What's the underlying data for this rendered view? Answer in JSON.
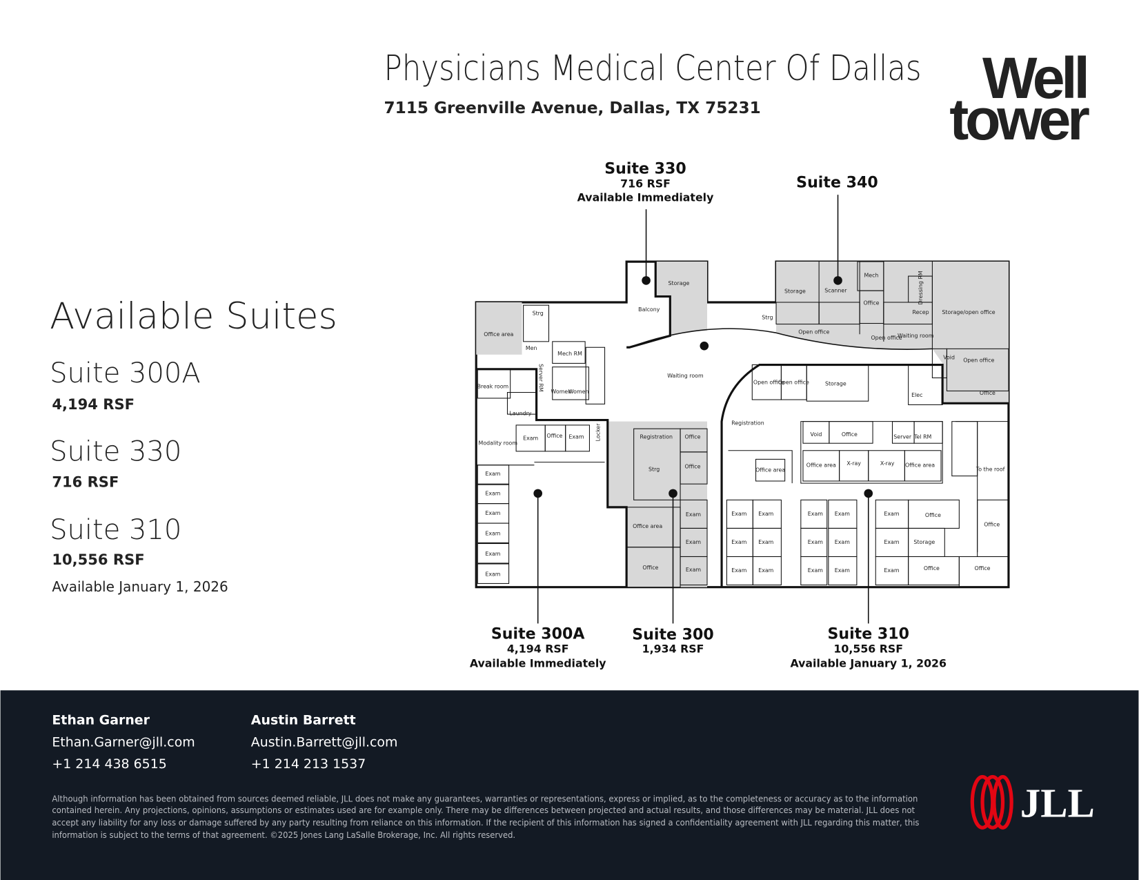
{
  "header": {
    "title": "Physicians Medical Center Of Dallas",
    "address": "7115 Greenville Avenue, Dallas, TX 75231",
    "brand_logo": [
      "Well",
      "tower"
    ]
  },
  "available": {
    "heading": "Available Suites",
    "suites": [
      {
        "name": "Suite 300A",
        "size": "4,194 RSF"
      },
      {
        "name": "Suite 330",
        "size": "716 RSF"
      },
      {
        "name": "Suite 310",
        "size": "10,556 RSF",
        "availability": "Available January 1, 2026"
      }
    ]
  },
  "floor_plan": {
    "callouts": [
      {
        "name": "Suite 330",
        "size": "716 RSF",
        "availability": "Available Immediately"
      },
      {
        "name": "Suite 340"
      },
      {
        "name": "Suite 300A",
        "size": "4,194 RSF",
        "availability": "Available Immediately"
      },
      {
        "name": "Suite 300",
        "size": "1,934 RSF"
      },
      {
        "name": "Suite 310",
        "size": "10,556 RSF",
        "availability": "Available January 1, 2026"
      }
    ],
    "rooms": [
      "Strg",
      "Office area",
      "Men",
      "Mech RM",
      "Balcony",
      "Storage",
      "Storage",
      "Scanner",
      "Mech",
      "Office",
      "Recep",
      "Waiting room",
      "Open office",
      "Open office",
      "Strg",
      "Storage/open office",
      "Void",
      "Open office",
      "Office",
      "Waiting room",
      "Break room",
      "Laundry",
      "Women",
      "Women",
      "Open office",
      "Open office",
      "Storage",
      "Elec",
      "Registration",
      "Void",
      "Office",
      "Server",
      "Tel RM",
      "Office area",
      "X-ray",
      "X-ray",
      "Office area",
      "Office area",
      "To the roof",
      "Exam",
      "Office",
      "Exam",
      "Modality room",
      "Registration",
      "Office",
      "Strg",
      "Office",
      "Exam",
      "Exam",
      "Exam",
      "Exam",
      "Exam",
      "Exam",
      "Office area",
      "Office",
      "Exam",
      "Exam",
      "Exam",
      "Exam",
      "Exam",
      "Exam",
      "Exam",
      "Exam",
      "Exam",
      "Exam",
      "Exam",
      "Exam",
      "Exam",
      "Exam",
      "Exam",
      "Exam",
      "Exam",
      "Exam",
      "Office",
      "Storage",
      "Office",
      "Office",
      "Office",
      "Dressing RM",
      "Server RM",
      "Locker"
    ]
  },
  "footer": {
    "contacts": [
      {
        "name": "Ethan Garner",
        "email": "Ethan.Garner@jll.com",
        "phone": "+1 214 438 6515"
      },
      {
        "name": "Austin Barrett",
        "email": "Austin.Barrett@jll.com",
        "phone": "+1 214 213 1537"
      }
    ],
    "disclaimer": [
      "Although information has been obtained from sources deemed reliable, JLL does not make any guarantees, warranties or representations, express or implied, as to the completeness or accuracy as to the information",
      "contained herein. Any projections, opinions, assumptions or estimates used are for example only. There may be differences between projected and actual results, and those differences may be material. JLL does not",
      "accept any liability for any loss or damage suffered by any party resulting from reliance on this information. If the recipient of this information has signed a confidentiality agreement with JLL regarding this matter, this",
      "information is subject to the terms of that agreement. ©2025 Jones Lang LaSalle Brokerage, Inc. All rights reserved."
    ],
    "logo": "JLL"
  }
}
